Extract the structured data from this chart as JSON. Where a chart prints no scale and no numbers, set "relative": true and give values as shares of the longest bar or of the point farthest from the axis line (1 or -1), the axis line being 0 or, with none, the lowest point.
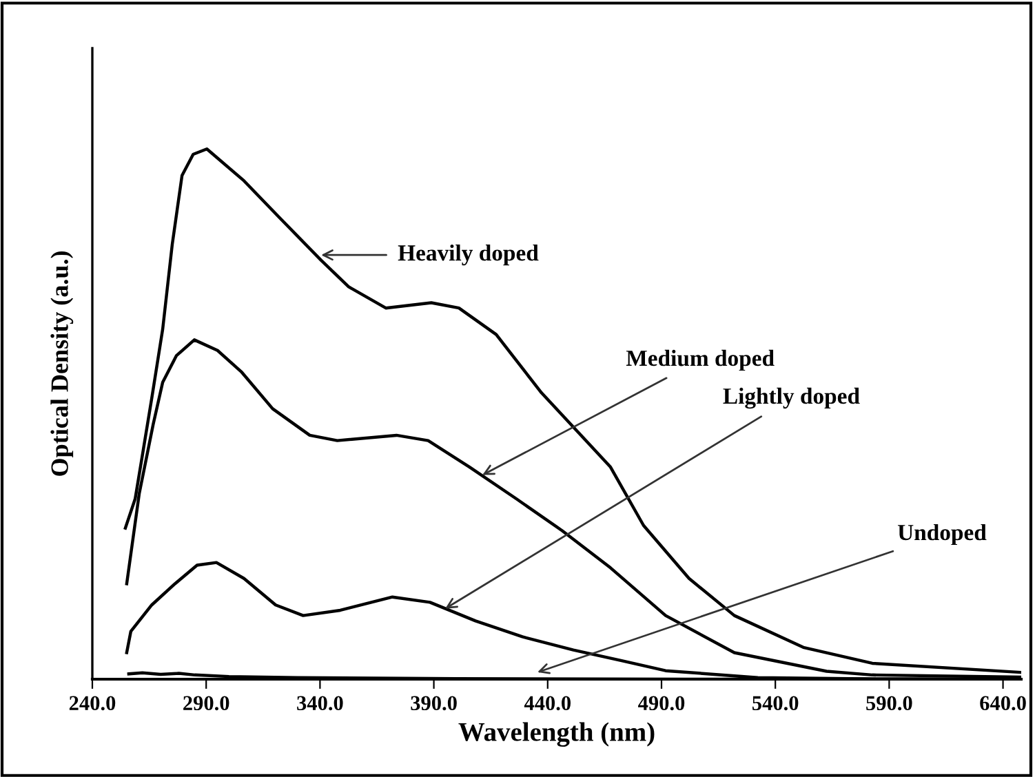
{
  "chart_data": {
    "type": "line",
    "relative": true,
    "xlabel": "Wavelength (nm)",
    "ylabel": "Optical Density (a.u.)",
    "xlim": [
      240,
      648
    ],
    "xticks": [
      {
        "value": 240,
        "label": "240.0"
      },
      {
        "value": 290,
        "label": "290.0"
      },
      {
        "value": 340,
        "label": "340.0"
      },
      {
        "value": 390,
        "label": "390.0"
      },
      {
        "value": 440,
        "label": "440.0"
      },
      {
        "value": 490,
        "label": "490.0"
      },
      {
        "value": 540,
        "label": "540.0"
      },
      {
        "value": 590,
        "label": "590.0"
      },
      {
        "value": 640,
        "label": "640.0"
      }
    ],
    "grid": false,
    "marker": "none",
    "line_style": "solid",
    "series": [
      {
        "color": "#000000",
        "x": [
          254.5,
          258.8,
          261.9,
          266.1,
          270.9,
          275.1,
          279.4,
          284.3,
          290.3,
          306.6,
          322.3,
          340.5,
          352.6,
          368.9,
          388.9,
          401,
          417.4,
          437.3,
          467.6,
          482.1,
          502.1,
          522,
          552.3,
          582.6,
          647.4
        ],
        "values": [
          0.285,
          0.34,
          0.42,
          0.53,
          0.66,
          0.82,
          0.95,
          0.99,
          1.0,
          0.94,
          0.87,
          0.79,
          0.74,
          0.7,
          0.71,
          0.7,
          0.65,
          0.54,
          0.4,
          0.29,
          0.19,
          0.12,
          0.06,
          0.03,
          0.013
        ]
      },
      {
        "color": "#000000",
        "x": [
          255.1,
          260.6,
          266.7,
          270.9,
          276.9,
          284.8,
          295,
          305.4,
          319.2,
          335.5,
          347.6,
          373.6,
          387.5,
          405.7,
          426.3,
          446.4,
          467.6,
          491.8,
          522,
          562.5,
          582.6,
          647.4
        ],
        "values": [
          0.18,
          0.35,
          0.48,
          0.56,
          0.61,
          0.64,
          0.62,
          0.58,
          0.51,
          0.46,
          0.45,
          0.46,
          0.45,
          0.4,
          0.34,
          0.28,
          0.21,
          0.12,
          0.05,
          0.015,
          0.008,
          0.004
        ]
      },
      {
        "color": "#000000",
        "x": [
          255.1,
          256.9,
          266.1,
          276.3,
          286,
          294.5,
          306.6,
          320.5,
          332.6,
          348.9,
          371.8,
          388.3,
          408.3,
          428.9,
          451.3,
          472.5,
          491.8,
          532.3,
          572.3,
          647.4
        ],
        "values": [
          0.05,
          0.09,
          0.14,
          0.18,
          0.215,
          0.22,
          0.19,
          0.14,
          0.12,
          0.13,
          0.155,
          0.145,
          0.11,
          0.08,
          0.055,
          0.035,
          0.016,
          0.003,
          0.001,
          0.0
        ]
      },
      {
        "color": "#000000",
        "x": [
          256,
          262,
          270,
          278,
          285,
          300,
          330,
          400,
          500,
          647.4
        ],
        "values": [
          0.01,
          0.012,
          0.009,
          0.011,
          0.008,
          0.005,
          0.003,
          0.001,
          0.0,
          0.0
        ]
      }
    ],
    "annotations": [
      {
        "text": "Heavily doped",
        "x": 340.5,
        "y": 0.8
      },
      {
        "text": "Medium doped",
        "x": 411.3,
        "y": 0.385
      },
      {
        "text": "Lightly doped",
        "x": 395,
        "y": 0.133
      },
      {
        "text": "Undoped",
        "x": 435.5,
        "y": 0.013
      }
    ]
  }
}
